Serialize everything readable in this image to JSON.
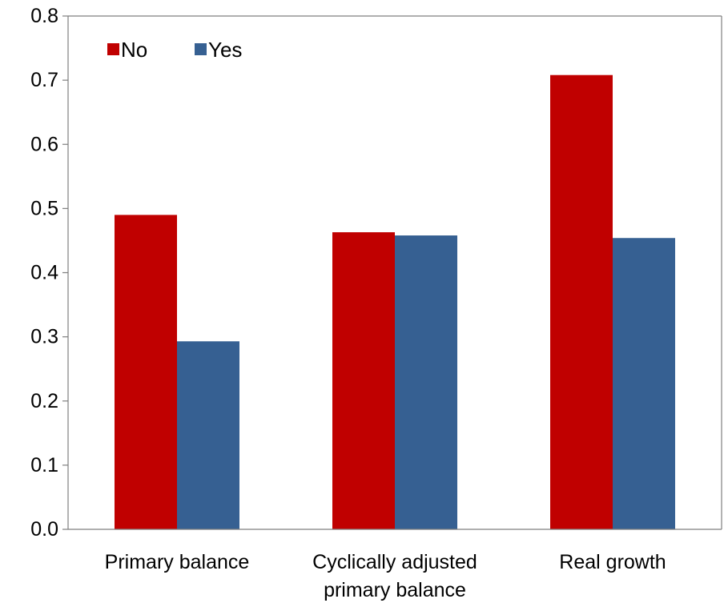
{
  "chart_data": {
    "type": "bar",
    "categories": [
      [
        "Primary balance"
      ],
      [
        "Cyclically adjusted",
        "primary balance"
      ],
      [
        "Real growth"
      ]
    ],
    "series": [
      {
        "name": "No",
        "values": [
          0.49,
          0.463,
          0.708
        ],
        "color": "#C00000"
      },
      {
        "name": "Yes",
        "values": [
          0.293,
          0.458,
          0.454
        ],
        "color": "#366092"
      }
    ],
    "title": "",
    "xlabel": "",
    "ylabel": "",
    "ylim": [
      0,
      0.8
    ],
    "yticks": [
      "0.0",
      "0.1",
      "0.2",
      "0.3",
      "0.4",
      "0.5",
      "0.6",
      "0.7",
      "0.8"
    ],
    "grid": false,
    "legend_position": "top-left"
  }
}
